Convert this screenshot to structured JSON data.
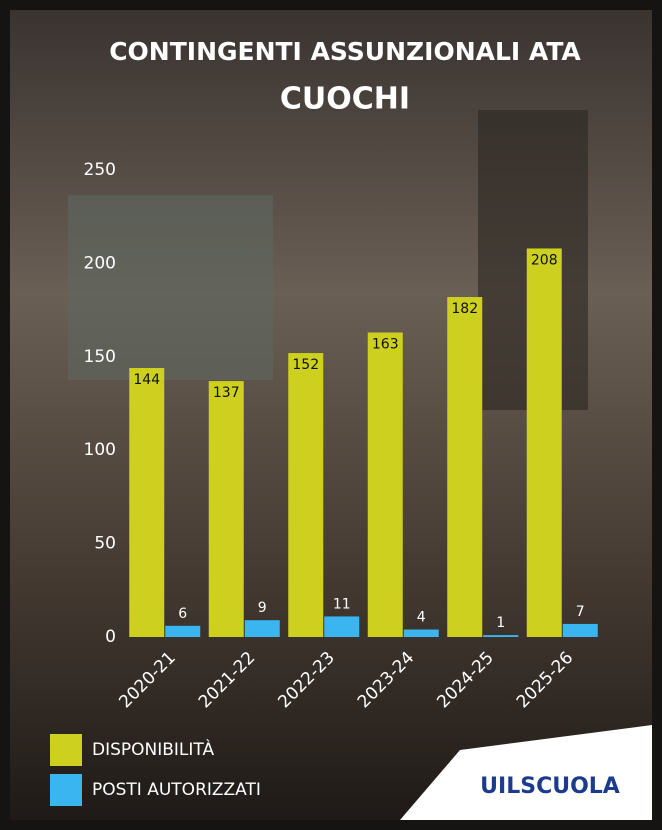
{
  "chart_data": {
    "type": "bar",
    "title": "CONTINGENTI ASSUNZIONALI ATA",
    "subtitle": "CUOCHI",
    "categories": [
      "2020-21",
      "2021-22",
      "2022-23",
      "2023-24",
      "2024-25",
      "2025-26"
    ],
    "series": [
      {
        "name": "DISPONIBILITÀ",
        "color": "#cdd01e",
        "values": [
          144,
          137,
          152,
          163,
          182,
          208
        ]
      },
      {
        "name": "POSTI AUTORIZZATI",
        "color": "#3bb5f0",
        "values": [
          6,
          9,
          11,
          4,
          1,
          7
        ]
      }
    ],
    "ylim": [
      0,
      250
    ],
    "yticks": [
      0,
      50,
      100,
      150,
      200,
      250
    ],
    "grid": false
  },
  "logo": "UILSCUOLA"
}
